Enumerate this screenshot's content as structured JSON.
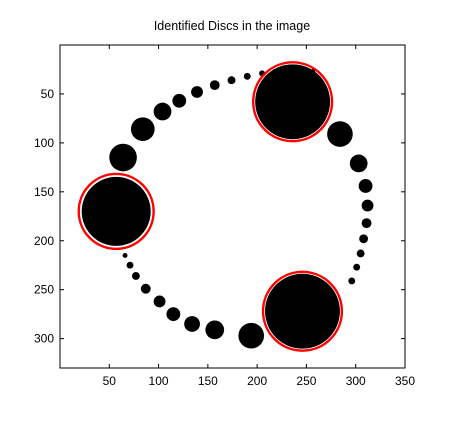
{
  "chart_data": {
    "type": "scatter",
    "title": "Identified Discs in the image",
    "xlabel": "",
    "ylabel": "",
    "xlim": [
      0,
      350
    ],
    "ylim": [
      0,
      330
    ],
    "y_inverted": true,
    "grid": false,
    "x_ticks": [
      50,
      100,
      150,
      200,
      250,
      300,
      350
    ],
    "y_ticks": [
      50,
      100,
      150,
      200,
      250,
      300
    ],
    "disc_color": "#000000",
    "circle_color": "#ff0000",
    "discs": [
      {
        "x": 64,
        "y": 115,
        "r": 14
      },
      {
        "x": 84,
        "y": 86,
        "r": 12
      },
      {
        "x": 104,
        "y": 68,
        "r": 9
      },
      {
        "x": 121,
        "y": 57,
        "r": 7
      },
      {
        "x": 139,
        "y": 48,
        "r": 6
      },
      {
        "x": 157,
        "y": 41,
        "r": 5
      },
      {
        "x": 174,
        "y": 36,
        "r": 4
      },
      {
        "x": 190,
        "y": 32,
        "r": 3.5
      },
      {
        "x": 205,
        "y": 29,
        "r": 3
      },
      {
        "x": 218,
        "y": 27,
        "r": 2.5
      },
      {
        "x": 229,
        "y": 26,
        "r": 2.2
      },
      {
        "x": 239,
        "y": 25,
        "r": 2
      },
      {
        "x": 248,
        "y": 25,
        "r": 2
      },
      {
        "x": 257,
        "y": 26,
        "r": 2.2
      },
      {
        "x": 236,
        "y": 58,
        "r": 38
      },
      {
        "x": 284,
        "y": 91,
        "r": 13
      },
      {
        "x": 303,
        "y": 121,
        "r": 9
      },
      {
        "x": 310,
        "y": 144,
        "r": 7
      },
      {
        "x": 312,
        "y": 164,
        "r": 6
      },
      {
        "x": 311,
        "y": 182,
        "r": 5
      },
      {
        "x": 308,
        "y": 198,
        "r": 4.5
      },
      {
        "x": 305,
        "y": 213,
        "r": 4
      },
      {
        "x": 301,
        "y": 227,
        "r": 3.5
      },
      {
        "x": 296,
        "y": 241,
        "r": 3.5
      },
      {
        "x": 246,
        "y": 272,
        "r": 38
      },
      {
        "x": 194,
        "y": 297,
        "r": 13
      },
      {
        "x": 157,
        "y": 291,
        "r": 9.5
      },
      {
        "x": 134,
        "y": 285,
        "r": 8
      },
      {
        "x": 115,
        "y": 275,
        "r": 7
      },
      {
        "x": 101,
        "y": 262,
        "r": 6
      },
      {
        "x": 87,
        "y": 249,
        "r": 5
      },
      {
        "x": 77,
        "y": 236,
        "r": 4
      },
      {
        "x": 71,
        "y": 225,
        "r": 3.5
      },
      {
        "x": 66,
        "y": 215,
        "r": 2.5
      },
      {
        "x": 57,
        "y": 170,
        "r": 35
      }
    ],
    "identified_circles": [
      {
        "x": 57,
        "y": 170,
        "r": 38
      },
      {
        "x": 236,
        "y": 58,
        "r": 40
      },
      {
        "x": 246,
        "y": 272,
        "r": 40
      }
    ]
  }
}
